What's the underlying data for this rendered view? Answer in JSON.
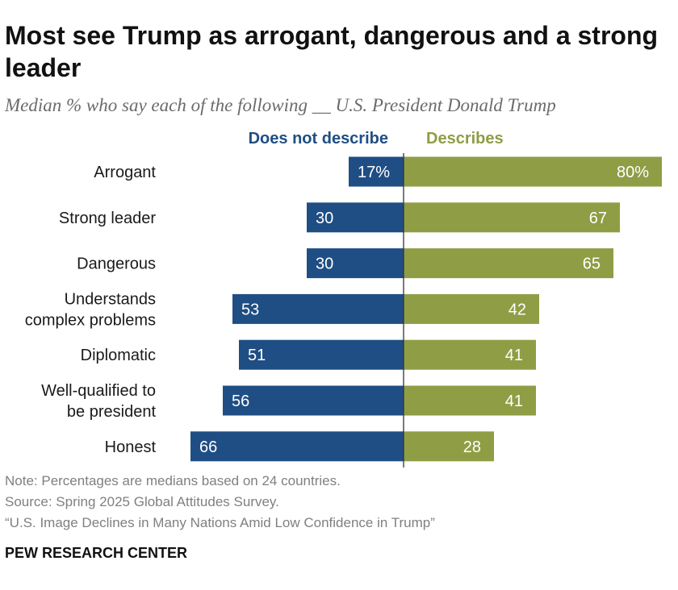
{
  "title": "Most see Trump as arrogant, dangerous and a strong leader",
  "subtitle": "Median % who say each of the following __ U.S. President Donald Trump",
  "chart_data": {
    "type": "bar",
    "orientation": "horizontal-diverging",
    "categories": [
      [
        "Arrogant"
      ],
      [
        "Strong leader"
      ],
      [
        "Dangerous"
      ],
      [
        "Understands",
        "complex problems"
      ],
      [
        "Diplomatic"
      ],
      [
        "Well-qualified to",
        "be president"
      ],
      [
        "Honest"
      ]
    ],
    "series": [
      {
        "name": "Does not describe",
        "color": "#1f4e84",
        "values": [
          17,
          30,
          30,
          53,
          51,
          56,
          66
        ],
        "labels": [
          "17%",
          "30",
          "30",
          "53",
          "51",
          "56",
          "66"
        ]
      },
      {
        "name": "Describes",
        "color": "#8f9d45",
        "values": [
          80,
          67,
          65,
          42,
          41,
          41,
          28
        ],
        "labels": [
          "80%",
          "67",
          "65",
          "42",
          "41",
          "41",
          "28"
        ]
      }
    ],
    "unit": "%"
  },
  "notes": {
    "note": "Note: Percentages are medians based on 24 countries.",
    "source": "Source: Spring 2025 Global Attitudes Survey.",
    "report": "“U.S. Image Declines in Many Nations Amid Low Confidence in Trump”"
  },
  "brand": "PEW RESEARCH CENTER"
}
